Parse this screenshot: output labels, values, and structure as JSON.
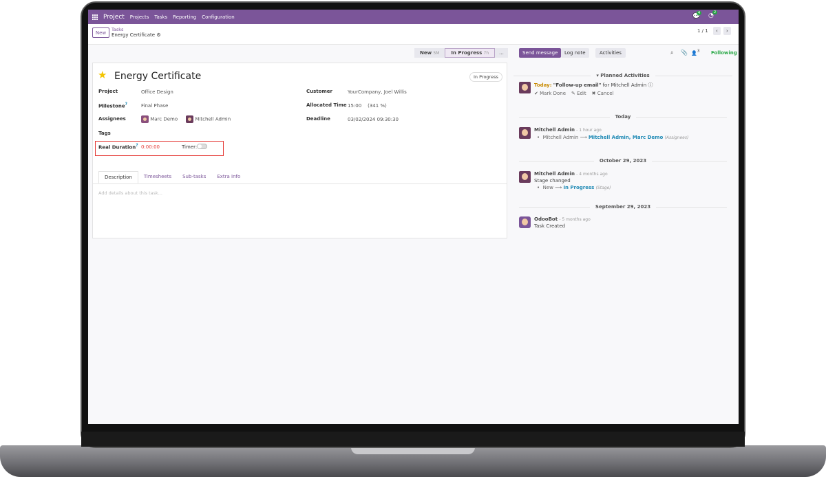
{
  "navbar": {
    "app": "Project",
    "menus": [
      "Projects",
      "Tasks",
      "Reporting",
      "Configuration"
    ],
    "messages_count": "4",
    "activities_count": "2"
  },
  "control": {
    "new_label": "New",
    "breadcrumb_parent": "Tasks",
    "breadcrumb_current": "Energy Certificate",
    "pager": "1 / 1"
  },
  "statusbar": {
    "stages": [
      {
        "label": "New",
        "time": "5M"
      },
      {
        "label": "In Progress",
        "time": "7h"
      }
    ],
    "more": "..."
  },
  "chatter_buttons": {
    "send": "Send message",
    "log": "Log note",
    "activities": "Activities",
    "followers_count": "3",
    "following": "Following"
  },
  "task": {
    "title": "Energy Certificate",
    "stage_badge": "In Progress",
    "fields_left": [
      {
        "label": "Project",
        "value": "Office Design"
      },
      {
        "label": "Milestone",
        "value": "Final Phase"
      },
      {
        "label": "Assignees",
        "value": ""
      },
      {
        "label": "Tags",
        "value": ""
      }
    ],
    "assignees": [
      "Marc Demo",
      "Mitchell Admin"
    ],
    "fields_right": [
      {
        "label": "Customer",
        "value": "YourCompany, Joel Willis"
      },
      {
        "label": "Allocated Time",
        "value": "15:00    (341 %)"
      },
      {
        "label": "Deadline",
        "value": "03/02/2024 09:30:30"
      }
    ],
    "real_duration_label": "Real Duration",
    "real_duration": "0:00:00",
    "timer_label": "Timer:",
    "timer_on": false,
    "tabs": [
      "Description",
      "Timesheets",
      "Sub-tasks",
      "Extra Info"
    ],
    "description_placeholder": "Add details about this task..."
  },
  "chatter": {
    "planned_header": "Planned Activities",
    "activity": {
      "when": "Today:",
      "summary": "\"Follow-up email\"",
      "for": "for Mitchell Admin",
      "mark_done": "Mark Done",
      "edit": "Edit",
      "cancel": "Cancel"
    },
    "groups": [
      {
        "date": "Today",
        "author": "Mitchell Admin",
        "ago": "- 1 hour ago",
        "body": "",
        "old": "Mitchell Admin",
        "new": "Mitchell Admin, Marc Demo",
        "field": "(Assignees)"
      },
      {
        "date": "October 29, 2023",
        "author": "Mitchell Admin",
        "ago": "- 4 months ago",
        "body": "Stage changed",
        "old": "New",
        "new": "In Progress",
        "field": "(Stage)"
      },
      {
        "date": "September 29, 2023",
        "author": "OdooBot",
        "ago": "- 5 months ago",
        "body": "Task Created"
      }
    ]
  }
}
